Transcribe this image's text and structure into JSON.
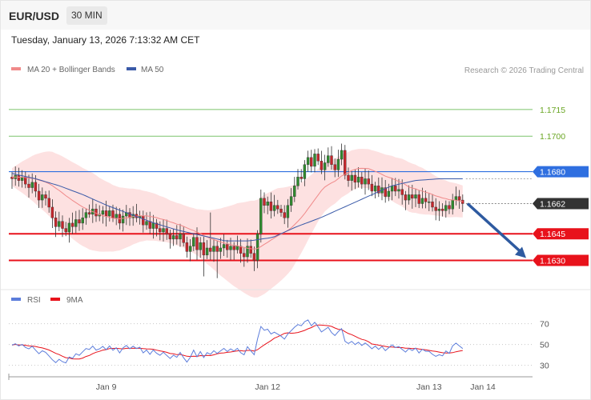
{
  "header": {
    "symbol": "EUR/USD",
    "timeframe": "30 MIN",
    "datetime": "Tuesday, January 13, 2026 7:13:32 AM CET"
  },
  "credit": "Research © 2026 Trading Central",
  "colors": {
    "up": "#2e8b2e",
    "down": "#c8252b",
    "ma20": "#f08a8a",
    "band_fill": "#fde1e1",
    "ma50": "#3a5aa8",
    "resistance": "#2f6fe0",
    "support": "#e8121b",
    "target_line": "#7cc36b",
    "arrow": "#2e5aa0",
    "rsi": "#5c7ddb",
    "rsi_ma": "#e8121b"
  },
  "chart_data": [
    {
      "type": "candlestick",
      "legend": [
        {
          "name": "MA 20 + Bollinger Bands",
          "color": "#f08a8a"
        },
        {
          "name": "MA 50",
          "color": "#3a5aa8"
        }
      ],
      "ylim": [
        1.1614,
        1.1733
      ],
      "y_ticks": [],
      "x_ticks": [
        {
          "label": "Jan 9",
          "index": 28
        },
        {
          "label": "Jan 12",
          "index": 76
        },
        {
          "label": "Jan 13",
          "index": 124
        },
        {
          "label": "Jan 14",
          "index": 140
        }
      ],
      "levels": [
        {
          "label": "1.1715",
          "value": 1.1715,
          "kind": "target"
        },
        {
          "label": "1.1700",
          "value": 1.17,
          "kind": "target"
        },
        {
          "label": "1.1680",
          "value": 1.168,
          "kind": "resistance"
        },
        {
          "label": "1.1662",
          "value": 1.1662,
          "kind": "last"
        },
        {
          "label": "1.1645",
          "value": 1.1645,
          "kind": "support"
        },
        {
          "label": "1.1630",
          "value": 1.163,
          "kind": "support"
        }
      ],
      "ohlc_start": 1.1677,
      "closes": [
        1.1676,
        1.1678,
        1.1675,
        1.1677,
        1.1673,
        1.1671,
        1.1674,
        1.1669,
        1.1664,
        1.1667,
        1.1665,
        1.166,
        1.1654,
        1.1649,
        1.1652,
        1.1648,
        1.1646,
        1.1651,
        1.1649,
        1.1653,
        1.1651,
        1.1654,
        1.1657,
        1.1656,
        1.1659,
        1.1655,
        1.1656,
        1.1658,
        1.1655,
        1.1658,
        1.1654,
        1.1656,
        1.1651,
        1.1655,
        1.1657,
        1.1654,
        1.1656,
        1.1654,
        1.1655,
        1.165,
        1.1652,
        1.1648,
        1.1651,
        1.1648,
        1.1646,
        1.1648,
        1.1645,
        1.1642,
        1.1644,
        1.1642,
        1.1645,
        1.164,
        1.1635,
        1.1638,
        1.1643,
        1.1636,
        1.164,
        1.1633,
        1.1637,
        1.1635,
        1.1638,
        1.1635,
        1.1637,
        1.1639,
        1.1636,
        1.1638,
        1.1636,
        1.1638,
        1.1634,
        1.1632,
        1.1638,
        1.1634,
        1.163,
        1.1645,
        1.1665,
        1.1661,
        1.1663,
        1.1658,
        1.1661,
        1.1659,
        1.1657,
        1.1654,
        1.1661,
        1.1666,
        1.1672,
        1.1677,
        1.1676,
        1.1684,
        1.1688,
        1.1683,
        1.169,
        1.1686,
        1.1681,
        1.1685,
        1.1689,
        1.1684,
        1.1681,
        1.1687,
        1.1692,
        1.1678,
        1.1675,
        1.1678,
        1.1674,
        1.1677,
        1.1673,
        1.1676,
        1.1673,
        1.1669,
        1.1672,
        1.1668,
        1.1671,
        1.1666,
        1.1669,
        1.1672,
        1.1669,
        1.167,
        1.1667,
        1.1664,
        1.1667,
        1.1665,
        1.1667,
        1.1662,
        1.1665,
        1.1663,
        1.1663,
        1.166,
        1.1658,
        1.1659,
        1.1658,
        1.1661,
        1.1659,
        1.1664,
        1.1666,
        1.1664,
        1.1662
      ],
      "ma20_start": 1.1677,
      "band_width": [
        0.0005,
        0.001,
        0.0015,
        0.0019,
        0.0021,
        0.0022,
        0.0022,
        0.002,
        0.0018,
        0.0016,
        0.0014,
        0.0013,
        0.0012,
        0.0012,
        0.0013,
        0.0016,
        0.002,
        0.0024,
        0.0027,
        0.0028,
        0.0027,
        0.0024,
        0.0019,
        0.0015,
        0.0013,
        0.0012,
        0.0011,
        0.0011,
        0.0012,
        0.0013,
        0.0014,
        0.0013,
        0.0011,
        0.001,
        0.0009
      ],
      "ma50_values": [
        1.1679,
        1.1676,
        1.1672,
        1.1667,
        1.1661,
        1.1656,
        1.1651,
        1.1647,
        1.1644,
        1.1641,
        1.1641,
        1.1643,
        1.1649,
        1.1654,
        1.166,
        1.1666,
        1.1672,
        1.1675,
        1.1676,
        1.1676
      ]
    },
    {
      "type": "line",
      "legend": [
        {
          "name": "RSI",
          "color": "#5c7ddb"
        },
        {
          "name": "9MA",
          "color": "#e8121b"
        }
      ],
      "ylim": [
        22,
        82
      ],
      "y_ticks": [
        {
          "label": "70",
          "value": 70
        },
        {
          "label": "50",
          "value": 50
        },
        {
          "label": "30",
          "value": 30
        }
      ]
    }
  ]
}
